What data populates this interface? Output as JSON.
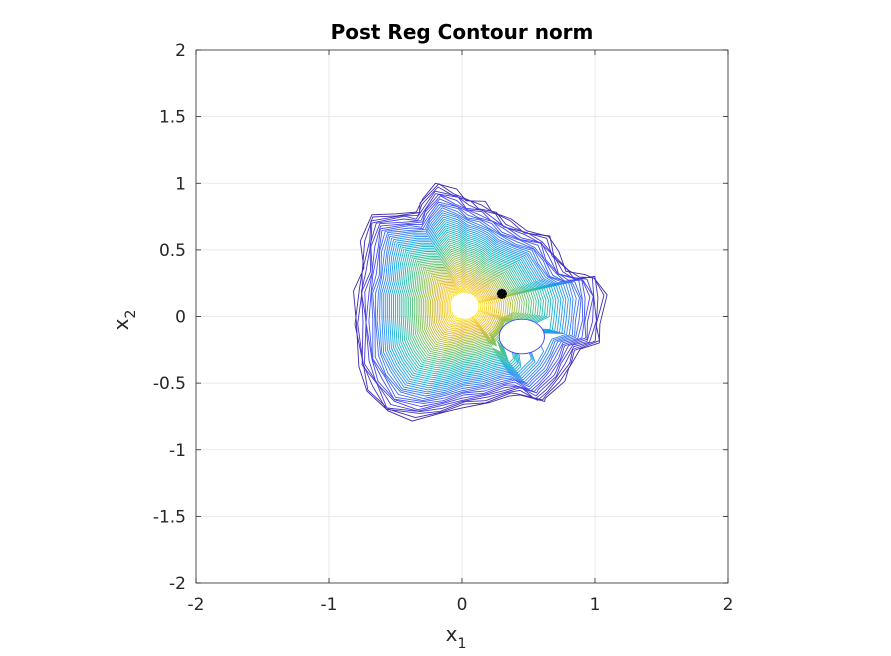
{
  "chart_data": {
    "type": "contour",
    "title": "Post Reg Contour norm",
    "xlabel": "x",
    "xlabel_subscript": "1",
    "ylabel": "x",
    "ylabel_subscript": "2",
    "xlim": [
      -2,
      2
    ],
    "ylim": [
      -2,
      2
    ],
    "xticks": [
      -2,
      -1,
      0,
      1,
      2
    ],
    "xtick_labels": [
      "-2",
      "-1",
      "0",
      "1",
      "2"
    ],
    "yticks": [
      -2,
      -1.5,
      -1,
      -0.5,
      0,
      0.5,
      1,
      1.5,
      2
    ],
    "ytick_labels": [
      "-2",
      "-1.5",
      "-1",
      "-0.5",
      "0",
      "0.5",
      "1",
      "1.5",
      "2"
    ],
    "grid": true,
    "density_peak": {
      "x": 0.02,
      "y": 0.08
    },
    "hole": {
      "x": 0.45,
      "y": -0.15,
      "rx": 0.17,
      "ry": 0.13
    },
    "marker": {
      "x": 0.3,
      "y": 0.17,
      "symbol": "asterisk",
      "color": "#000000"
    },
    "outer_boundary": [
      [
        -0.2,
        1.0
      ],
      [
        -0.05,
        0.95
      ],
      [
        0.05,
        0.88
      ],
      [
        0.15,
        0.85
      ],
      [
        0.25,
        0.8
      ],
      [
        0.35,
        0.72
      ],
      [
        0.5,
        0.65
      ],
      [
        0.65,
        0.6
      ],
      [
        0.72,
        0.48
      ],
      [
        0.8,
        0.35
      ],
      [
        0.9,
        0.3
      ],
      [
        1.02,
        0.3
      ],
      [
        1.07,
        0.15
      ],
      [
        1.05,
        -0.05
      ],
      [
        1.03,
        -0.2
      ],
      [
        0.88,
        -0.25
      ],
      [
        0.82,
        -0.38
      ],
      [
        0.75,
        -0.5
      ],
      [
        0.65,
        -0.6
      ],
      [
        0.6,
        -0.65
      ],
      [
        0.45,
        -0.58
      ],
      [
        0.35,
        -0.6
      ],
      [
        0.2,
        -0.65
      ],
      [
        0.0,
        -0.68
      ],
      [
        -0.15,
        -0.73
      ],
      [
        -0.35,
        -0.77
      ],
      [
        -0.58,
        -0.72
      ],
      [
        -0.7,
        -0.55
      ],
      [
        -0.78,
        -0.38
      ],
      [
        -0.8,
        -0.05
      ],
      [
        -0.8,
        0.2
      ],
      [
        -0.76,
        0.35
      ],
      [
        -0.74,
        0.58
      ],
      [
        -0.7,
        0.75
      ],
      [
        -0.48,
        0.78
      ],
      [
        -0.35,
        0.78
      ],
      [
        -0.3,
        0.88
      ]
    ],
    "colormap": [
      "#3e26a8",
      "#4749f2",
      "#2f85f5",
      "#15adda",
      "#2fbfa0",
      "#6ac16a",
      "#b0bd3f",
      "#e9b92f",
      "#fbd725",
      "#f9fb0e"
    ]
  }
}
